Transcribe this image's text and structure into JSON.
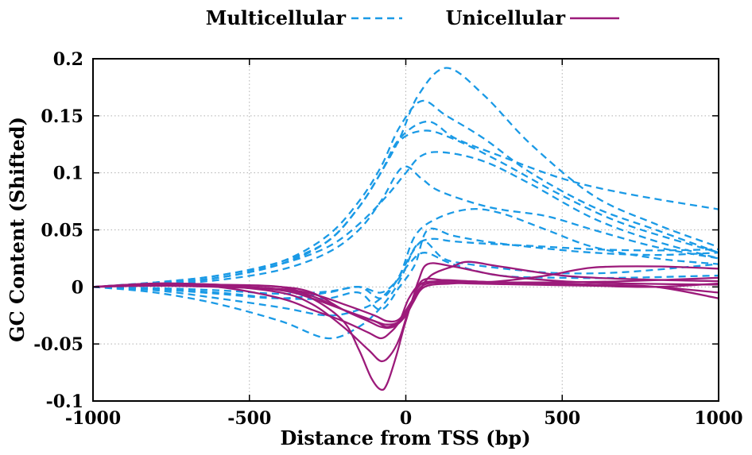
{
  "chart_data": {
    "type": "line",
    "title": "",
    "xlabel": "Distance from TSS (bp)",
    "ylabel": "GC Content (Shifted)",
    "xlim": [
      -1000,
      1000
    ],
    "ylim": [
      -0.1,
      0.2
    ],
    "xticks": [
      -1000,
      -500,
      0,
      500,
      1000
    ],
    "xtick_labels": [
      "-1000",
      "-500",
      "0",
      "500",
      "1000"
    ],
    "yticks": [
      -0.1,
      -0.05,
      0,
      0.05,
      0.1,
      0.15,
      0.2
    ],
    "ytick_labels": [
      "-0.1",
      "-0.05",
      "0",
      "0.05",
      "0.1",
      "0.15",
      "0.2"
    ],
    "grid": true,
    "legend_position": "top-center",
    "legend": [
      {
        "label": "Multicellular",
        "color": "#1a9ae6",
        "style": "dashed"
      },
      {
        "label": "Unicellular",
        "color": "#9c1a7a",
        "style": "solid"
      }
    ],
    "series": [
      {
        "group": "Multicellular",
        "color": "#1a9ae6",
        "style": "dashed",
        "x": [
          -1000,
          -800,
          -600,
          -400,
          -250,
          -150,
          -80,
          -20,
          40,
          130,
          250,
          400,
          600,
          800,
          1000
        ],
        "y": [
          0,
          0.004,
          0.01,
          0.022,
          0.04,
          0.07,
          0.1,
          0.13,
          0.168,
          0.192,
          0.168,
          0.125,
          0.08,
          0.055,
          0.035
        ]
      },
      {
        "group": "Multicellular",
        "color": "#1a9ae6",
        "style": "dashed",
        "x": [
          -1000,
          -800,
          -600,
          -400,
          -250,
          -150,
          -80,
          -20,
          50,
          130,
          250,
          400,
          600,
          800,
          1000
        ],
        "y": [
          0,
          0.004,
          0.01,
          0.022,
          0.045,
          0.075,
          0.105,
          0.14,
          0.163,
          0.15,
          0.13,
          0.1,
          0.07,
          0.05,
          0.03
        ]
      },
      {
        "group": "Multicellular",
        "color": "#1a9ae6",
        "style": "dashed",
        "x": [
          -1000,
          -800,
          -600,
          -400,
          -250,
          -150,
          -80,
          -20,
          70,
          160,
          300,
          500,
          700,
          1000
        ],
        "y": [
          0,
          0.003,
          0.008,
          0.02,
          0.04,
          0.07,
          0.1,
          0.13,
          0.145,
          0.13,
          0.115,
          0.095,
          0.082,
          0.068
        ]
      },
      {
        "group": "Multicellular",
        "color": "#1a9ae6",
        "style": "dashed",
        "x": [
          -1000,
          -800,
          -600,
          -400,
          -250,
          -150,
          -80,
          -20,
          60,
          150,
          300,
          500,
          700,
          1000
        ],
        "y": [
          0,
          0.003,
          0.008,
          0.02,
          0.04,
          0.07,
          0.1,
          0.128,
          0.137,
          0.13,
          0.11,
          0.08,
          0.055,
          0.03
        ]
      },
      {
        "group": "Multicellular",
        "color": "#1a9ae6",
        "style": "dashed",
        "x": [
          -1000,
          -800,
          -600,
          -400,
          -250,
          -150,
          -60,
          0,
          50,
          120,
          250,
          400,
          600,
          800,
          1000
        ],
        "y": [
          0,
          0.003,
          0.008,
          0.02,
          0.035,
          0.055,
          0.08,
          0.1,
          0.115,
          0.118,
          0.11,
          0.09,
          0.06,
          0.04,
          0.025
        ]
      },
      {
        "group": "Multicellular",
        "color": "#1a9ae6",
        "style": "dashed",
        "x": [
          -1000,
          -800,
          -600,
          -400,
          -250,
          -150,
          -80,
          -10,
          50,
          100,
          200,
          300,
          450,
          600,
          800,
          1000
        ],
        "y": [
          0,
          0.002,
          0.006,
          0.015,
          0.03,
          0.05,
          0.075,
          0.105,
          0.095,
          0.085,
          0.075,
          0.068,
          0.062,
          0.05,
          0.035,
          0.025
        ]
      },
      {
        "group": "Multicellular",
        "color": "#1a9ae6",
        "style": "dashed",
        "x": [
          -1000,
          -800,
          -600,
          -400,
          -250,
          -150,
          -80,
          -20,
          30,
          100,
          200,
          300,
          450,
          600,
          800,
          1000
        ],
        "y": [
          0,
          -0.003,
          -0.01,
          -0.018,
          -0.025,
          -0.02,
          -0.01,
          0.01,
          0.045,
          0.06,
          0.068,
          0.065,
          0.05,
          0.035,
          0.025,
          0.02
        ]
      },
      {
        "group": "Multicellular",
        "color": "#1a9ae6",
        "style": "dashed",
        "x": [
          -1000,
          -800,
          -600,
          -400,
          -250,
          -150,
          -80,
          -20,
          30,
          80,
          150,
          250,
          400,
          600,
          800,
          1000
        ],
        "y": [
          0,
          -0.005,
          -0.015,
          -0.03,
          -0.045,
          -0.035,
          -0.018,
          0.005,
          0.035,
          0.042,
          0.04,
          0.038,
          0.036,
          0.033,
          0.032,
          0.033
        ]
      },
      {
        "group": "Multicellular",
        "color": "#1a9ae6",
        "style": "dashed",
        "x": [
          -1000,
          -800,
          -600,
          -400,
          -250,
          -150,
          -80,
          -30,
          20,
          60,
          120,
          200,
          350,
          500,
          700,
          1000
        ],
        "y": [
          0,
          -0.002,
          -0.006,
          -0.01,
          -0.005,
          0,
          -0.01,
          0.005,
          0.03,
          0.04,
          0.025,
          0.02,
          0.015,
          0.012,
          0.013,
          0.02
        ]
      },
      {
        "group": "Multicellular",
        "color": "#1a9ae6",
        "style": "dashed",
        "x": [
          -1000,
          -800,
          -600,
          -400,
          -250,
          -150,
          -80,
          -20,
          30,
          70,
          150,
          250,
          400,
          600,
          800,
          1000
        ],
        "y": [
          0,
          -0.002,
          -0.005,
          -0.01,
          -0.01,
          -0.005,
          -0.02,
          0.0,
          0.02,
          0.05,
          0.045,
          0.04,
          0.035,
          0.03,
          0.028,
          0.03
        ]
      },
      {
        "group": "Multicellular",
        "color": "#1a9ae6",
        "style": "dashed",
        "x": [
          -1000,
          -800,
          -600,
          -400,
          -250,
          -150,
          -80,
          -30,
          10,
          60,
          150,
          300,
          500,
          700,
          1000
        ],
        "y": [
          0,
          -0.001,
          -0.003,
          -0.006,
          -0.004,
          0.0,
          -0.005,
          0.005,
          0.02,
          0.03,
          0.02,
          0.01,
          0.008,
          0.008,
          0.01
        ]
      },
      {
        "group": "Unicellular",
        "color": "#9c1a7a",
        "style": "solid",
        "x": [
          -1000,
          -800,
          -600,
          -400,
          -300,
          -200,
          -150,
          -110,
          -80,
          -60,
          -30,
          0,
          40,
          100,
          200,
          400,
          600,
          800,
          1000
        ],
        "y": [
          0,
          0.003,
          0.002,
          0.0,
          -0.01,
          -0.03,
          -0.055,
          -0.08,
          -0.09,
          -0.085,
          -0.06,
          -0.03,
          0.0,
          0.005,
          0.005,
          0.003,
          0.002,
          0.0,
          -0.005
        ]
      },
      {
        "group": "Unicellular",
        "color": "#9c1a7a",
        "style": "solid",
        "x": [
          -1000,
          -800,
          -600,
          -400,
          -300,
          -200,
          -120,
          -80,
          -50,
          -20,
          10,
          50,
          120,
          200,
          400,
          600,
          800,
          1000
        ],
        "y": [
          0,
          0.002,
          0.001,
          -0.005,
          -0.015,
          -0.035,
          -0.055,
          -0.065,
          -0.06,
          -0.045,
          -0.02,
          0.005,
          0.006,
          0.005,
          0.003,
          0.002,
          0.0,
          -0.01
        ]
      },
      {
        "group": "Unicellular",
        "color": "#9c1a7a",
        "style": "solid",
        "x": [
          -1000,
          -800,
          -600,
          -400,
          -300,
          -200,
          -120,
          -80,
          -50,
          -20,
          10,
          50,
          120,
          200,
          400,
          600,
          800,
          1000
        ],
        "y": [
          0,
          0.002,
          0.0,
          -0.01,
          -0.02,
          -0.03,
          -0.04,
          -0.045,
          -0.04,
          -0.03,
          -0.01,
          0.003,
          0.004,
          0.003,
          0.002,
          0.001,
          0.0,
          0.003
        ]
      },
      {
        "group": "Unicellular",
        "color": "#9c1a7a",
        "style": "solid",
        "x": [
          -1000,
          -800,
          -600,
          -400,
          -300,
          -200,
          -120,
          -80,
          -40,
          0,
          40,
          80,
          150,
          200,
          300,
          500,
          700,
          1000
        ],
        "y": [
          0,
          0.003,
          0.002,
          0.0,
          -0.005,
          -0.02,
          -0.03,
          -0.035,
          -0.035,
          -0.025,
          -0.005,
          0.01,
          0.018,
          0.022,
          0.018,
          0.01,
          0.007,
          0.005
        ]
      },
      {
        "group": "Unicellular",
        "color": "#9c1a7a",
        "style": "solid",
        "x": [
          -1000,
          -800,
          -600,
          -400,
          -300,
          -200,
          -100,
          -60,
          -20,
          10,
          40,
          70,
          150,
          300,
          500,
          700,
          1000
        ],
        "y": [
          0,
          0.002,
          0.001,
          -0.003,
          -0.01,
          -0.02,
          -0.03,
          -0.035,
          -0.03,
          -0.02,
          0.005,
          0.02,
          0.018,
          0.01,
          0.005,
          0.003,
          0.002
        ]
      },
      {
        "group": "Unicellular",
        "color": "#9c1a7a",
        "style": "solid",
        "x": [
          -1000,
          -800,
          -600,
          -400,
          -300,
          -200,
          -100,
          -60,
          -20,
          20,
          60,
          150,
          300,
          450,
          600,
          800,
          1000
        ],
        "y": [
          0,
          0.002,
          0.001,
          -0.002,
          -0.008,
          -0.02,
          -0.03,
          -0.033,
          -0.03,
          -0.015,
          0.0,
          0.003,
          0.005,
          0.01,
          0.017,
          0.018,
          0.016
        ]
      },
      {
        "group": "Unicellular",
        "color": "#9c1a7a",
        "style": "solid",
        "x": [
          -1000,
          -800,
          -600,
          -400,
          -300,
          -200,
          -100,
          -60,
          -20,
          20,
          60,
          150,
          300,
          500,
          700,
          1000
        ],
        "y": [
          0,
          0.001,
          0.0,
          -0.002,
          -0.006,
          -0.015,
          -0.025,
          -0.03,
          -0.028,
          -0.012,
          0.002,
          0.004,
          0.004,
          0.004,
          0.005,
          0.008
        ]
      }
    ]
  }
}
